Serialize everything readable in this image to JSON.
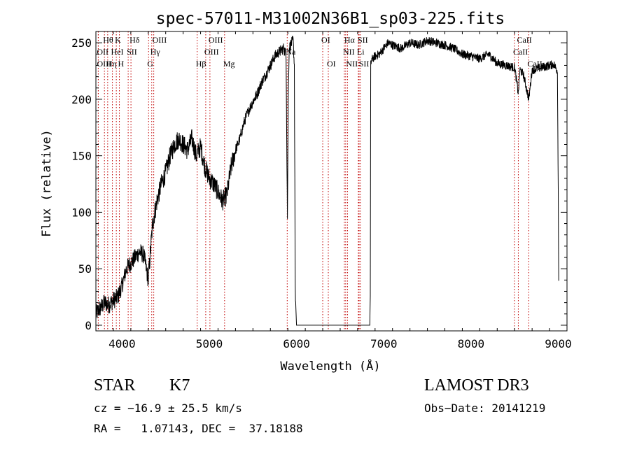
{
  "chart_data": {
    "type": "line",
    "title": "spec-57011-M31002N36B1_sp03-225.fits",
    "xlabel": "Wavelength (Å)",
    "ylabel": "Flux (relative)",
    "xlim": [
      3700,
      9100
    ],
    "ylim": [
      -5,
      260
    ],
    "xticks": [
      4000,
      5000,
      6000,
      7000,
      8000,
      9000
    ],
    "xtick_labels": [
      "4000",
      "5000",
      "6000",
      "7000",
      "8000",
      "9000"
    ],
    "yticks": [
      0,
      50,
      100,
      150,
      200,
      250
    ],
    "ytick_labels": [
      "0",
      "50",
      "100",
      "150",
      "200",
      "250"
    ],
    "grid": false,
    "series": [
      {
        "name": "flux",
        "x": [
          3700,
          3750,
          3800,
          3850,
          3900,
          3950,
          4000,
          4050,
          4100,
          4150,
          4200,
          4250,
          4300,
          4350,
          4400,
          4450,
          4500,
          4550,
          4600,
          4650,
          4700,
          4750,
          4800,
          4850,
          4900,
          4950,
          5000,
          5050,
          5100,
          5150,
          5200,
          5250,
          5300,
          5350,
          5400,
          5450,
          5500,
          5550,
          5600,
          5650,
          5700,
          5750,
          5800,
          5850,
          5880,
          5895,
          5905,
          5915,
          5930,
          5960,
          5975,
          5985,
          6000,
          6840,
          6845,
          6850,
          6860,
          6900,
          6950,
          7000,
          7050,
          7100,
          7200,
          7300,
          7400,
          7500,
          7600,
          7700,
          7800,
          7900,
          8000,
          8100,
          8200,
          8300,
          8400,
          8500,
          8542,
          8560,
          8600,
          8662,
          8700,
          8800,
          8900,
          8950,
          8990,
          9000,
          9005
        ],
        "y": [
          10,
          15,
          20,
          18,
          22,
          25,
          35,
          50,
          55,
          60,
          65,
          62,
          40,
          90,
          110,
          125,
          135,
          150,
          160,
          165,
          160,
          155,
          165,
          150,
          158,
          140,
          130,
          125,
          118,
          110,
          115,
          140,
          155,
          165,
          180,
          190,
          198,
          205,
          215,
          222,
          230,
          238,
          242,
          245,
          240,
          95,
          200,
          245,
          248,
          252,
          230,
          30,
          0,
          0,
          25,
          230,
          235,
          238,
          240,
          245,
          250,
          248,
          245,
          250,
          248,
          252,
          250,
          248,
          245,
          240,
          238,
          236,
          240,
          232,
          230,
          228,
          205,
          226,
          222,
          200,
          226,
          228,
          230,
          231,
          225,
          120,
          40
        ]
      }
    ],
    "line_markers": [
      {
        "name": "Hθ",
        "x": 3798,
        "row": 0
      },
      {
        "name": "OII",
        "x": 3727,
        "row": 1
      },
      {
        "name": "OIII",
        "x": 3728,
        "row": 2
      },
      {
        "name": "HeI",
        "x": 3889,
        "row": 1
      },
      {
        "name": "K",
        "x": 3934,
        "row": 0
      },
      {
        "name": "H",
        "x": 3969,
        "row": 2
      },
      {
        "name": "SII",
        "x": 4070,
        "row": 1
      },
      {
        "name": "Hδ",
        "x": 4102,
        "row": 0
      },
      {
        "name": "Hη",
        "x": 3835,
        "row": 2
      },
      {
        "name": "OIII",
        "x": 4363,
        "row": 0
      },
      {
        "name": "Hγ",
        "x": 4340,
        "row": 1
      },
      {
        "name": "G",
        "x": 4304,
        "row": 2
      },
      {
        "name": "Hβ",
        "x": 4861,
        "row": 2
      },
      {
        "name": "OIII",
        "x": 5007,
        "row": 0
      },
      {
        "name": "OIII",
        "x": 4959,
        "row": 1
      },
      {
        "name": "Mg",
        "x": 5175,
        "row": 2
      },
      {
        "name": "Na",
        "x": 5893,
        "row": 1
      },
      {
        "name": "OI",
        "x": 6300,
        "row": 0
      },
      {
        "name": "OI",
        "x": 6364,
        "row": 2
      },
      {
        "name": "Hα",
        "x": 6563,
        "row": 0
      },
      {
        "name": "NII",
        "x": 6548,
        "row": 1
      },
      {
        "name": "SII",
        "x": 6717,
        "row": 0
      },
      {
        "name": "Li",
        "x": 6708,
        "row": 1
      },
      {
        "name": "NII",
        "x": 6584,
        "row": 2
      },
      {
        "name": "SII",
        "x": 6731,
        "row": 2
      },
      {
        "name": "CaII",
        "x": 8542,
        "row": 0
      },
      {
        "name": "CaII",
        "x": 8498,
        "row": 1
      },
      {
        "name": "CaII",
        "x": 8662,
        "row": 2
      }
    ],
    "annotations": {
      "object_class": "STAR",
      "subclass": "K7",
      "survey": "LAMOST DR3",
      "cz_line": "cz = −16.9 ± 25.5 km/s",
      "obs_date": "Obs−Date: 20141219",
      "coords": "RA =   1.07143, DEC =  37.18188"
    }
  }
}
